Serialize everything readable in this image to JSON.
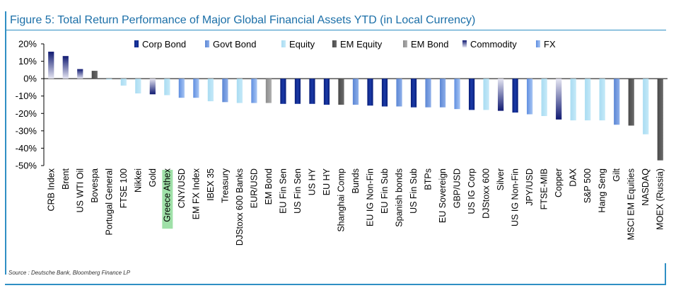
{
  "title": "Figure 5: Total Return Performance of Major Global Financial Assets YTD (in Local Currency)",
  "source": "Source : Deutsche Bank, Bloomberg Finance LP",
  "colors": {
    "frame": "#2f8fc4",
    "title": "#1b6fa8",
    "highlight_label_bg": "#9fe0a8"
  },
  "chart_data": {
    "type": "bar",
    "ylim": [
      -50,
      20
    ],
    "yticks": [
      20,
      10,
      0,
      -10,
      -20,
      -30,
      -40,
      -50
    ],
    "ytick_labels": [
      "20%",
      "10%",
      "0%",
      "-10%",
      "-20%",
      "-30%",
      "-40%",
      "-50%"
    ],
    "highlight_category": "Greece Athex",
    "legend": [
      {
        "name": "Corp Bond",
        "style": "corp"
      },
      {
        "name": "Govt Bond",
        "style": "govt"
      },
      {
        "name": "Equity",
        "style": "equity"
      },
      {
        "name": "EM Equity",
        "style": "emeq"
      },
      {
        "name": "EM Bond",
        "style": "embond"
      },
      {
        "name": "Commodity",
        "style": "commodity"
      },
      {
        "name": "FX",
        "style": "fx"
      }
    ],
    "categories": [
      "CRB Index",
      "Brent",
      "US WTI Oil",
      "Bovespa",
      "Portugal General",
      "FTSE 100",
      "Nikkei",
      "Gold",
      "Greece Athex",
      "CNY/USD",
      "EM FX Index",
      "IBEX 35",
      "Treasury",
      "DJStoxx 600 Banks",
      "EUR/USD",
      "EM Bond",
      "EU Fin Sen",
      "US Fin Sen",
      "US HY",
      "EU HY",
      "Shanghai Comp",
      "Bunds",
      "EU IG Non-Fin",
      "EU Fin Sub",
      "Spanish bonds",
      "US Fin Sub",
      "BTPs",
      "EU Sovereign",
      "GBP/USD",
      "US IG Corp",
      "DJStoxx 600",
      "Silver",
      "US IG Non-Fin",
      "JPY/USD",
      "FTSE-MIB",
      "Copper",
      "DAX",
      "S&P 500",
      "Hang Seng",
      "Gilt",
      "MSCI EM Equities",
      "NASDAQ",
      "MOEX (Russia)"
    ],
    "values": [
      15.5,
      13,
      5.5,
      4.5,
      -0.5,
      -4,
      -8.5,
      -9,
      -9.5,
      -11,
      -11,
      -13,
      -13.5,
      -14,
      -14,
      -14,
      -14.5,
      -14.5,
      -14.5,
      -15,
      -15,
      -15,
      -15.5,
      -16,
      -16,
      -16.5,
      -16.5,
      -16.5,
      -17.5,
      -18,
      -18,
      -18.5,
      -19.5,
      -20.5,
      -21.5,
      -23.5,
      -24,
      -24,
      -24,
      -26.5,
      -27,
      -32,
      -47
    ],
    "classes": [
      "commodity",
      "commodity",
      "commodity",
      "emeq",
      "equity",
      "equity",
      "equity",
      "commodity",
      "equity",
      "fx",
      "fx",
      "equity",
      "govt",
      "equity",
      "fx",
      "embond",
      "corp",
      "corp",
      "corp",
      "corp",
      "emeq",
      "govt",
      "corp",
      "corp",
      "govt",
      "corp",
      "govt",
      "govt",
      "fx",
      "corp",
      "equity",
      "commodity",
      "corp",
      "fx",
      "equity",
      "commodity",
      "equity",
      "equity",
      "equity",
      "govt",
      "emeq",
      "equity",
      "emeq"
    ]
  }
}
